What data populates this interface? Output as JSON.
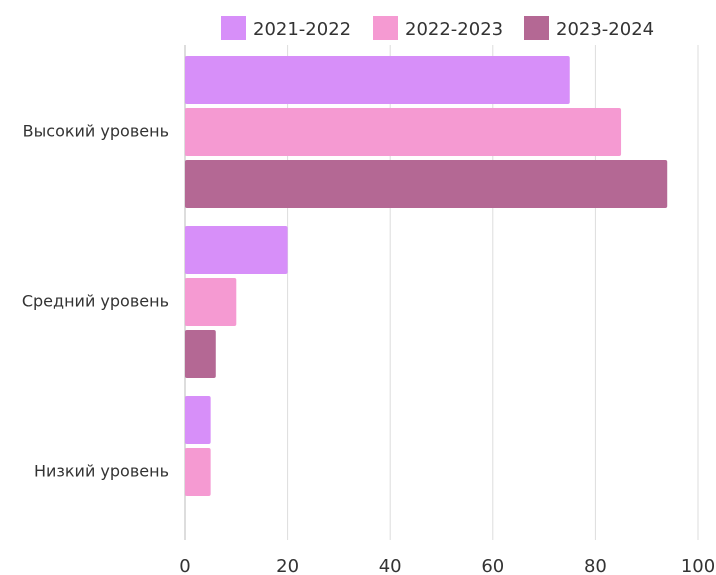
{
  "chart_data": {
    "type": "bar",
    "orientation": "horizontal",
    "categories": [
      "Высокий уровень",
      "Средний уровень",
      "Низкий уровень"
    ],
    "series": [
      {
        "name": "2021-2022",
        "color": "#d78ff9",
        "values": [
          75,
          20,
          5
        ]
      },
      {
        "name": "2022-2023",
        "color": "#f59ad2",
        "values": [
          85,
          10,
          5
        ]
      },
      {
        "name": "2023-2024",
        "color": "#b46894",
        "values": [
          94,
          6,
          null
        ]
      }
    ],
    "xlim": [
      0,
      100
    ],
    "xticks": [
      0,
      20,
      40,
      60,
      80,
      100
    ],
    "grid": true,
    "legend_position": "top"
  }
}
